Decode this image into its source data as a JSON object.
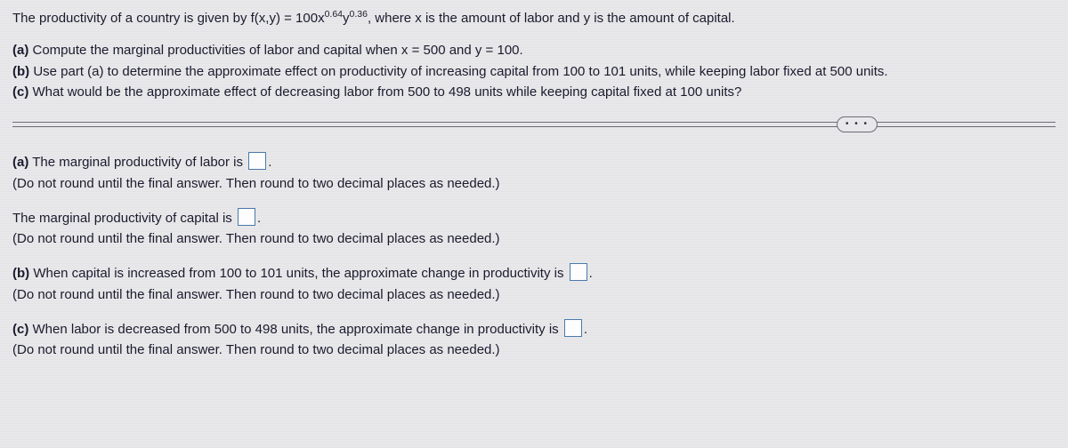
{
  "problem": {
    "intro_prefix": "The productivity of a country is given by f(x,y) = 100x",
    "exp1": "0.64",
    "mid": "y",
    "exp2": "0.36",
    "intro_suffix": ", where x is the amount of labor and y is the amount of capital."
  },
  "parts": {
    "a_label": "(a)",
    "a_text": " Compute the marginal productivities of labor and capital when x = 500 and y = 100.",
    "b_label": "(b)",
    "b_text": " Use part (a) to determine the approximate effect on productivity of increasing capital from 100 to 101 units, while keeping labor fixed at 500 units.",
    "c_label": "(c)",
    "c_text": " What would be the approximate effect of decreasing labor from 500 to 498 units while keeping capital fixed at 100 units?"
  },
  "more_label": "• • •",
  "answers": {
    "a1_label": "(a)",
    "a1_text": " The marginal productivity of labor is ",
    "a1_hint": "(Do not round until the final answer. Then round to two decimal places as needed.)",
    "a2_text": "The marginal productivity of capital is ",
    "a2_hint": "(Do not round until the final answer. Then round to two decimal places as needed.)",
    "b_label": "(b)",
    "b_text": "  When capital is increased from 100 to 101 units, the approximate change in productivity is ",
    "b_hint": "(Do not round until the final answer. Then round to two decimal places as needed.)",
    "c_label": "(c)",
    "c_text": " When labor is decreased from 500 to 498 units, the approximate change in productivity is ",
    "c_hint": "(Do not round until the final answer. Then round to two decimal places as needed.)"
  },
  "period": "."
}
